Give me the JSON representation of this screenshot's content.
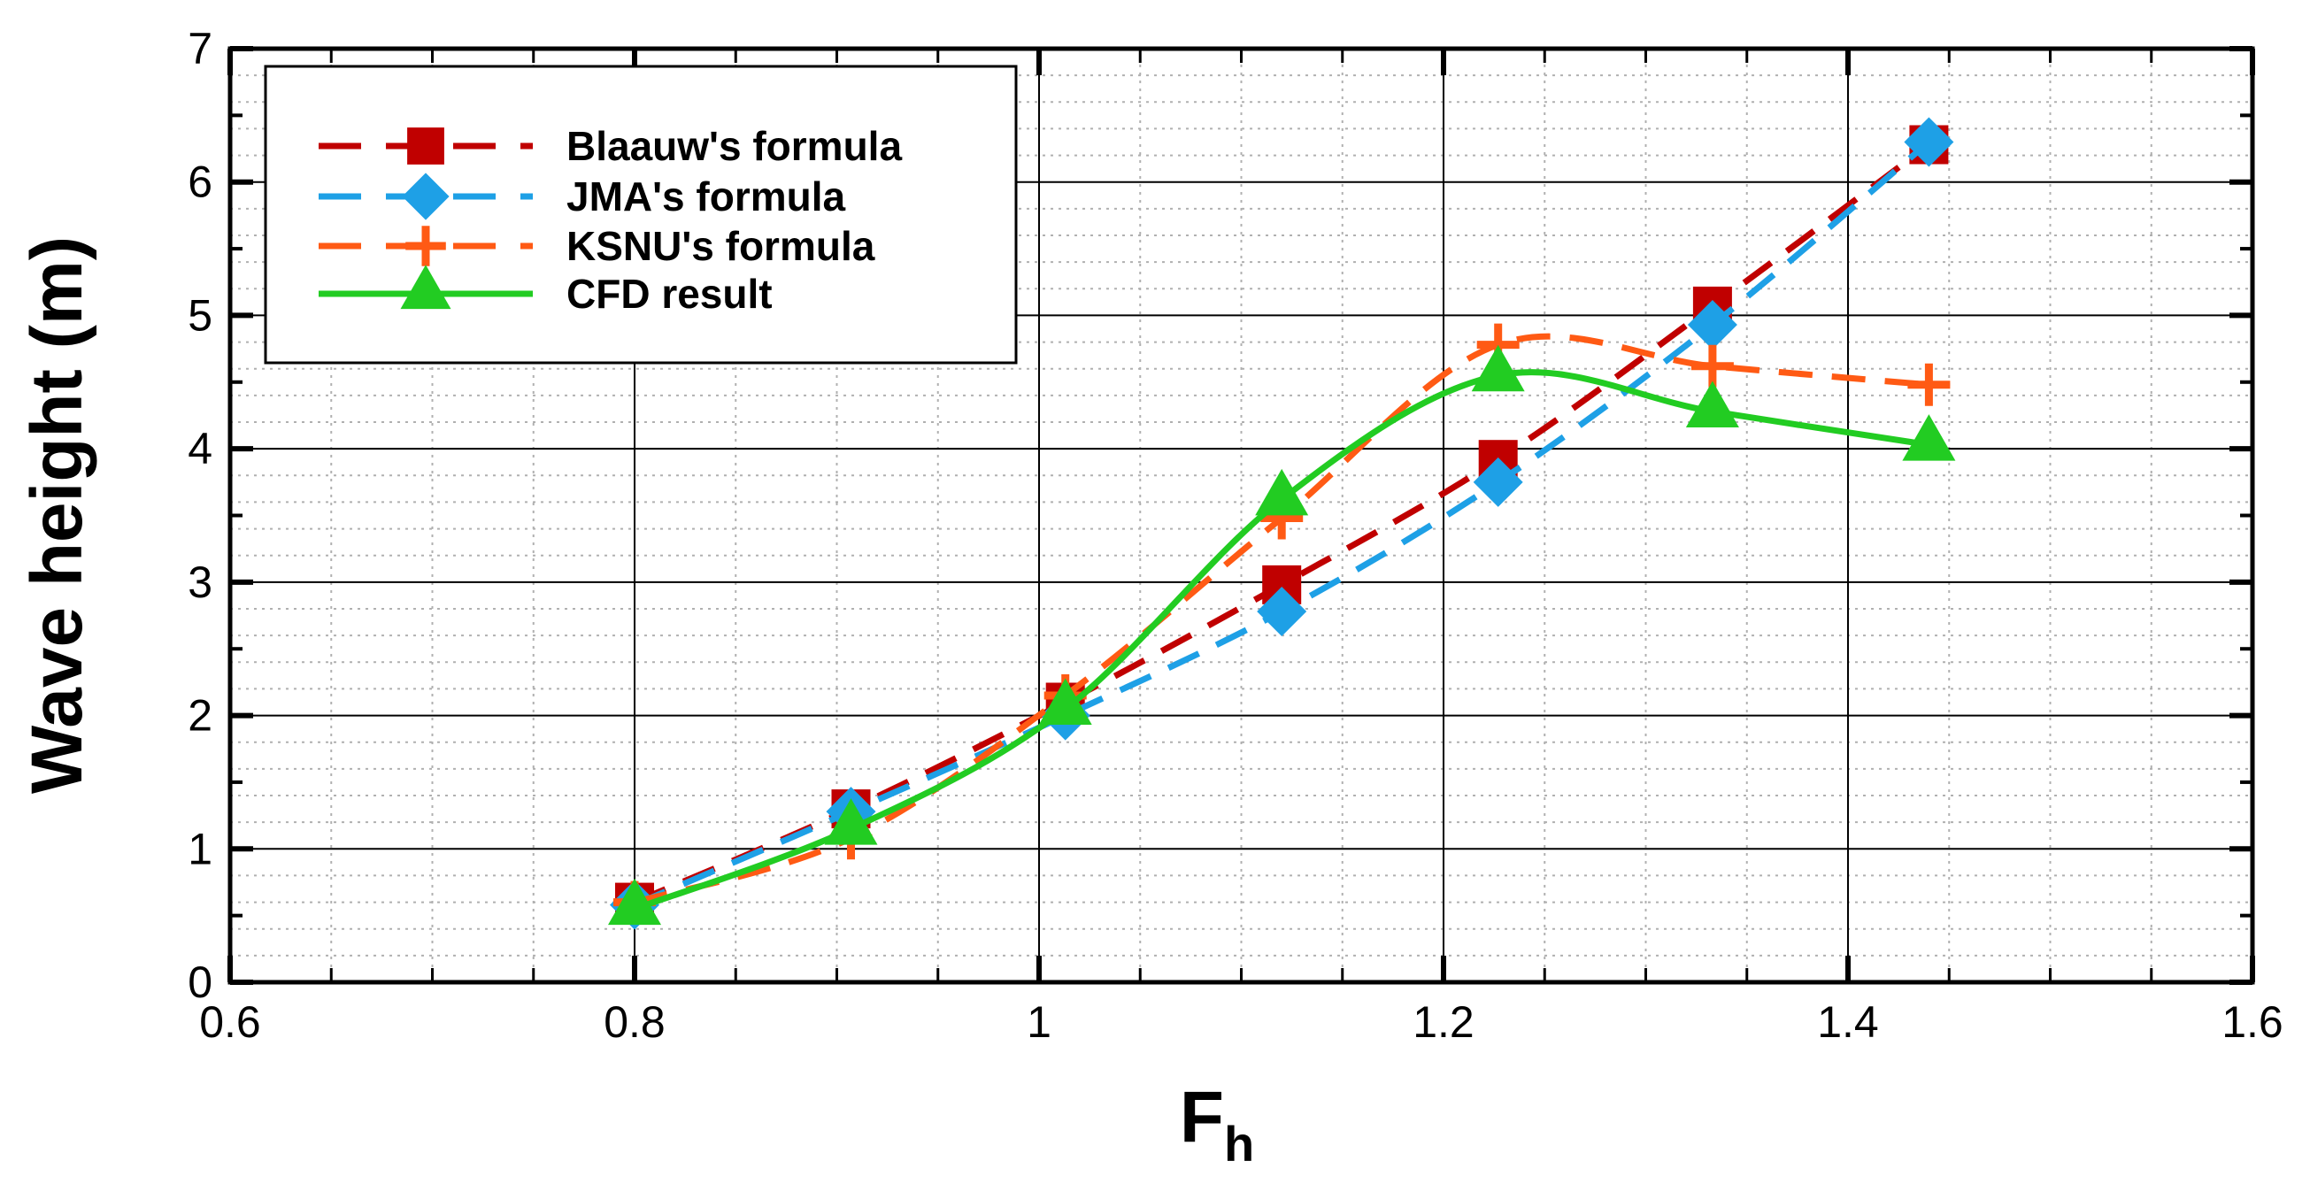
{
  "chart_data": {
    "type": "line",
    "xlabel": "F",
    "xlabel_sub": "h",
    "ylabel": "Wave height (m)",
    "xlim": [
      0.6,
      1.6
    ],
    "ylim": [
      0,
      7
    ],
    "x_ticks": [
      "0.6",
      "0.8",
      "1",
      "1.2",
      "1.4",
      "1.6"
    ],
    "y_ticks": [
      "0",
      "1",
      "2",
      "3",
      "4",
      "5",
      "6",
      "7"
    ],
    "grid": true,
    "legend_position": "top-left",
    "series": [
      {
        "name": "Blaauw's formula",
        "color": "#c00000",
        "marker": "square",
        "line": "dashed",
        "x": [
          0.8,
          0.907,
          1.013,
          1.12,
          1.227,
          1.333,
          1.44
        ],
        "y": [
          0.6,
          1.3,
          2.1,
          2.98,
          3.92,
          5.07,
          6.28
        ]
      },
      {
        "name": "JMA's formula",
        "color": "#1ea0e6",
        "marker": "diamond",
        "line": "dashed",
        "x": [
          0.8,
          0.907,
          1.013,
          1.12,
          1.227,
          1.333,
          1.44
        ],
        "y": [
          0.58,
          1.28,
          2.0,
          2.78,
          3.75,
          4.93,
          6.3
        ]
      },
      {
        "name": "KSNU's formula",
        "color": "#ff5a14",
        "marker": "plus",
        "line": "dashed",
        "x": [
          0.8,
          0.907,
          1.013,
          1.12,
          1.227,
          1.333,
          1.44
        ],
        "y": [
          0.6,
          1.08,
          2.15,
          3.48,
          4.78,
          4.62,
          4.48
        ]
      },
      {
        "name": "CFD result",
        "color": "#22cc22",
        "marker": "triangle",
        "line": "solid",
        "x": [
          0.8,
          0.907,
          1.013,
          1.12,
          1.227,
          1.333,
          1.44
        ],
        "y": [
          0.55,
          1.15,
          2.05,
          3.62,
          4.55,
          4.28,
          4.03
        ]
      }
    ]
  }
}
